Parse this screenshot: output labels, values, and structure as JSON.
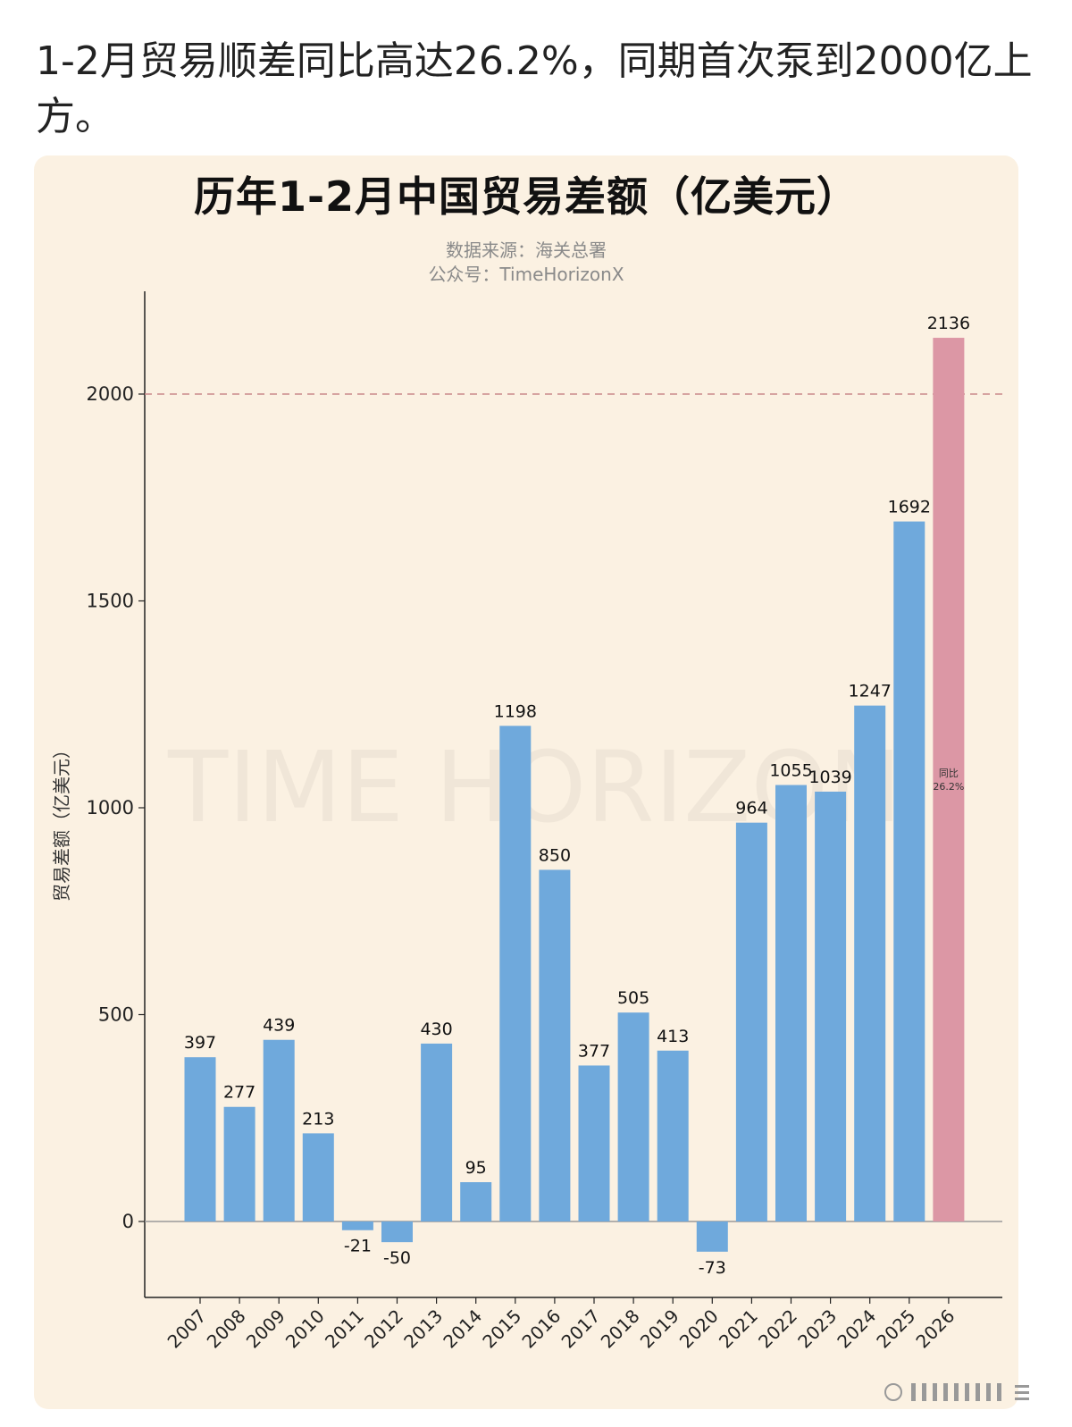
{
  "post": {
    "text": "1-2月贸易顺差同比高达26.2%，同期首次泵到2000亿上方。"
  },
  "chart_data": {
    "type": "bar",
    "title": "历年1-2月中国贸易差额（亿美元）",
    "subtitle_lines": [
      "数据来源：海关总署",
      "公众号：TimeHorizonX"
    ],
    "ylabel": "贸易差额（亿美元）",
    "xlabel": "",
    "categories": [
      "2007",
      "2008",
      "2009",
      "2010",
      "2011",
      "2012",
      "2013",
      "2014",
      "2015",
      "2016",
      "2017",
      "2018",
      "2019",
      "2020",
      "2021",
      "2022",
      "2023",
      "2024",
      "2025",
      "2026"
    ],
    "values": [
      397,
      277,
      439,
      213,
      -21,
      -50,
      430,
      95,
      1198,
      850,
      377,
      505,
      413,
      -73,
      964,
      1055,
      1039,
      1247,
      1692,
      2136
    ],
    "ylim": [
      -180,
      2250
    ],
    "yticks": [
      0,
      500,
      1000,
      1500,
      2000
    ],
    "reference_line": {
      "value": 2000,
      "style": "dashed",
      "color": "#c98b8b"
    },
    "bar_color": "#6fa9dc",
    "highlight_color": "#dc97a5",
    "highlight_index": 19,
    "annotation": {
      "lines": [
        "同比",
        "26.2%"
      ],
      "index": 19
    },
    "watermark": "TIME HORIZON",
    "grid": false,
    "legend": "none"
  }
}
